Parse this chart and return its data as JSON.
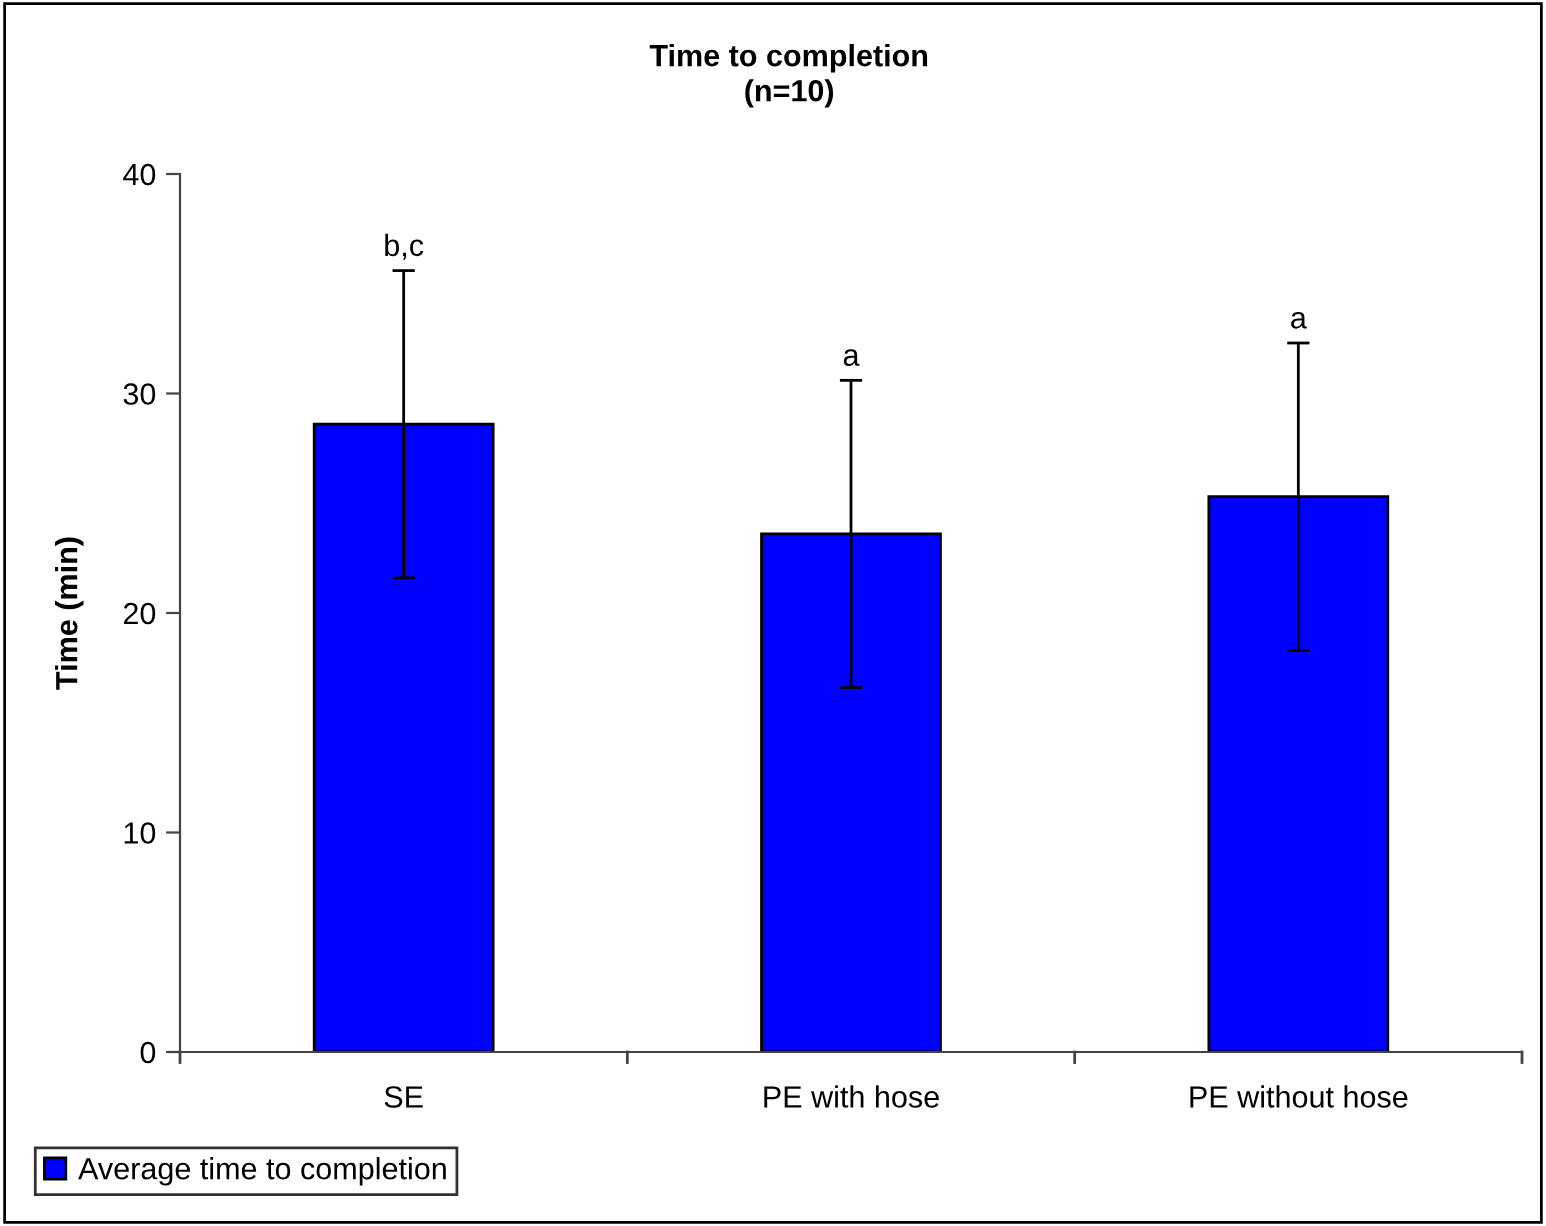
{
  "chart_data": {
    "type": "bar",
    "title": "Time to completion\n(n=10)",
    "ylabel": "Time (min)",
    "categories": [
      "SE",
      "PE with hose",
      "PE without hose"
    ],
    "series": [
      {
        "name": "Average time to completion",
        "color": "#0000ff",
        "values": [
          28.6,
          23.6,
          25.3
        ],
        "errors": [
          7.0,
          7.0,
          7.0
        ]
      }
    ],
    "annotations": [
      {
        "text": "b,c",
        "x": "SE",
        "y": 35.6
      },
      {
        "text": "a",
        "x": "PE with hose",
        "y": 30.6
      },
      {
        "text": "a",
        "x": "PE without hose",
        "y": 32.3
      }
    ],
    "ylim": [
      0,
      40
    ],
    "yticks": [
      0,
      10,
      20,
      30,
      40
    ],
    "grid": false,
    "legend": "bottom left"
  }
}
